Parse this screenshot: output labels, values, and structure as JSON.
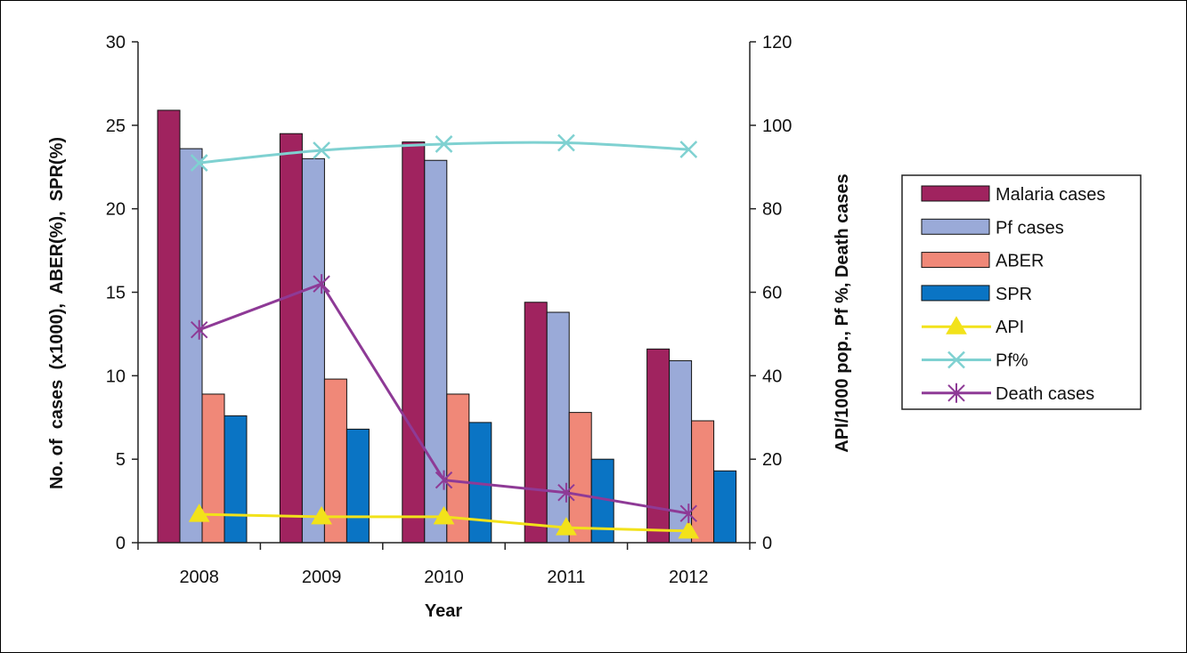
{
  "chart_data": {
    "type": "bar",
    "categories": [
      "2008",
      "2009",
      "2010",
      "2011",
      "2012"
    ],
    "xlabel": "Year",
    "ylabel_left": "No. of  cases  (x1000),  ABER(%),  SPR(%)",
    "ylabel_right": "API/1000 pop., Pf %, Death cases",
    "ylim_left": [
      0,
      30
    ],
    "ylim_right": [
      0,
      120
    ],
    "yticks_left": [
      "0",
      "5",
      "10",
      "15",
      "20",
      "25",
      "30"
    ],
    "yticks_right": [
      "0",
      "20",
      "40",
      "60",
      "80",
      "100",
      "120"
    ],
    "grid": false,
    "legend_position": "right",
    "bar_series": [
      {
        "name": "Malaria cases",
        "axis": "left",
        "color": "#a0235f",
        "values": [
          25.9,
          24.5,
          24.0,
          14.4,
          11.6
        ]
      },
      {
        "name": "Pf cases",
        "axis": "left",
        "color": "#9aaad8",
        "values": [
          23.6,
          23.0,
          22.9,
          13.8,
          10.9
        ]
      },
      {
        "name": "ABER",
        "axis": "left",
        "color": "#f08878",
        "values": [
          8.9,
          9.8,
          8.9,
          7.8,
          7.3
        ]
      },
      {
        "name": "SPR",
        "axis": "left",
        "color": "#0a74c4",
        "values": [
          7.6,
          6.8,
          7.2,
          5.0,
          4.3
        ]
      }
    ],
    "line_series": [
      {
        "name": "API",
        "axis": "right",
        "color": "#f2e21a",
        "marker": "triangle",
        "values": [
          6.8,
          6.2,
          6.2,
          3.6,
          2.8
        ]
      },
      {
        "name": "Pf%",
        "axis": "right",
        "color": "#7fd1d1",
        "marker": "x",
        "values": [
          91,
          94,
          95.5,
          95.8,
          94.2
        ]
      },
      {
        "name": "Death cases",
        "axis": "right",
        "color": "#8e3a96",
        "marker": "star",
        "values": [
          51,
          62,
          15,
          12,
          7
        ]
      }
    ]
  }
}
